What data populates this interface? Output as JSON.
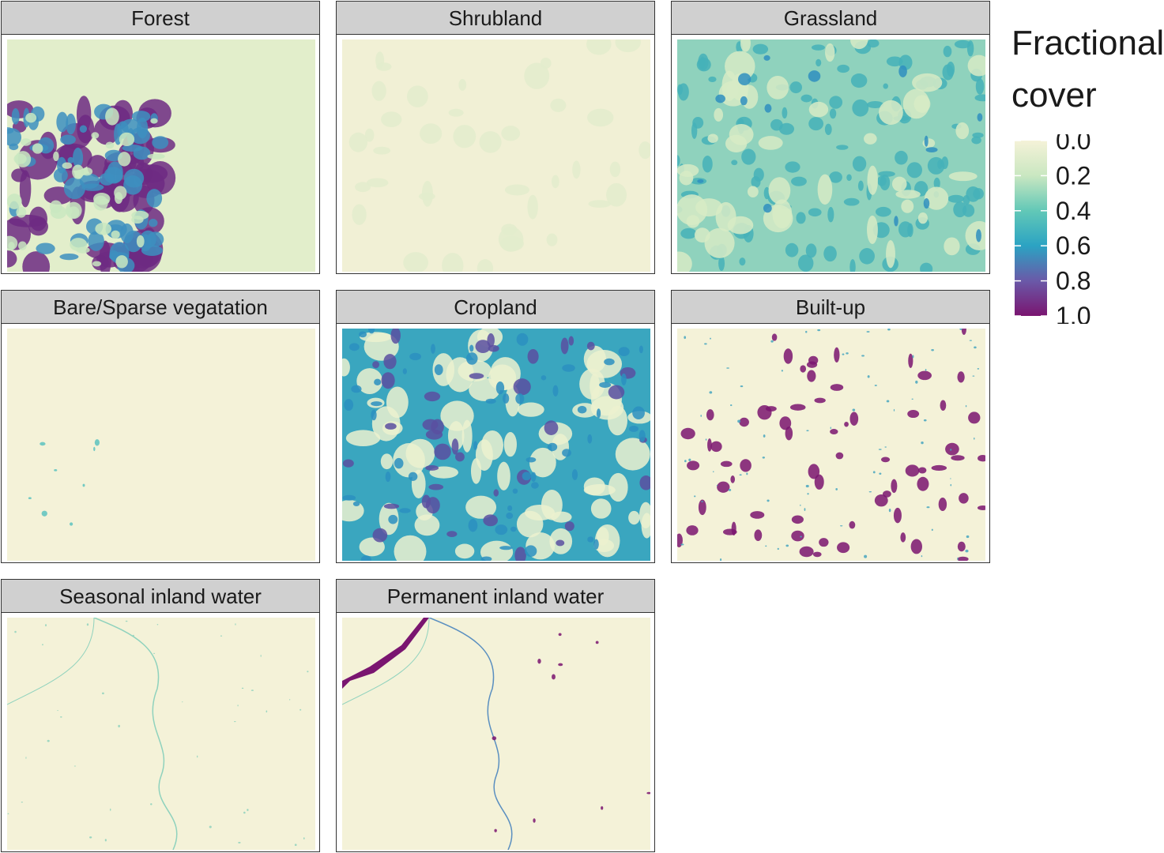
{
  "panels": [
    {
      "title": "Forest"
    },
    {
      "title": "Shrubland"
    },
    {
      "title": "Grassland"
    },
    {
      "title": "Bare/Sparse vegatation"
    },
    {
      "title": "Cropland"
    },
    {
      "title": "Built-up"
    },
    {
      "title": "Seasonal inland water"
    },
    {
      "title": "Permanent inland water"
    }
  ],
  "legend": {
    "title": "Fractional cover",
    "ticks": [
      {
        "value": 0,
        "label": "0.0"
      },
      {
        "value": 0.2,
        "label": "0.2"
      },
      {
        "value": 0.4,
        "label": "0.4"
      },
      {
        "value": 0.6,
        "label": "0.6"
      },
      {
        "value": 0.8,
        "label": "0.8"
      },
      {
        "value": 1,
        "label": "1.0"
      }
    ],
    "range": [
      0,
      1
    ],
    "colors": [
      "#f5f2d8",
      "#c9e7c1",
      "#62c8b7",
      "#2ba3c3",
      "#6a59a8",
      "#7a1570"
    ]
  }
}
